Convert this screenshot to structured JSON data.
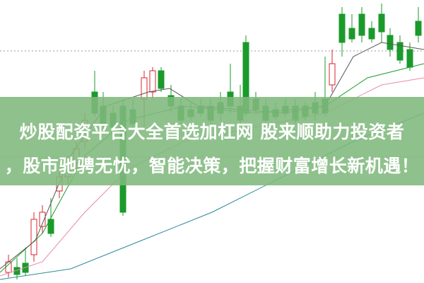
{
  "banner": {
    "title_line1": "炒股配资平台大全首选加杠网 股来顺助力投资者",
    "title_line2": "，股市驰骋无忧，智能决策，把握财富增长新机遇！"
  },
  "colors": {
    "banner": "#80b87c",
    "up": "#d9262b",
    "down": "#1a9a2a",
    "text": "#ffffff"
  }
}
